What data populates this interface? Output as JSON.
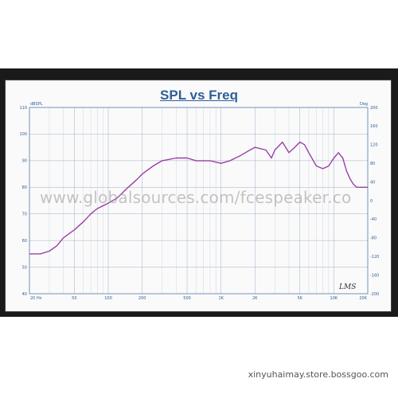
{
  "page": {
    "footer": "xinyuhaimay.store.bossgoo.com",
    "watermark": "www.globalsources.com/fcespeaker.co",
    "logo": "LMS"
  },
  "chart_data": {
    "type": "line",
    "title": "SPL vs Freq",
    "ylabel_left": "dBSPL",
    "ylabel_right": "Deg",
    "xscale": "log",
    "xlim": [
      20,
      20000
    ],
    "ylim": [
      40,
      110
    ],
    "y2lim": [
      -200,
      200
    ],
    "grid": true,
    "x_ticks": [
      "20 Hz",
      "50",
      "100",
      "200",
      "500",
      "1K",
      "2K",
      "5K",
      "10K",
      "20K"
    ],
    "y_ticks": [
      "110",
      "100",
      "90",
      "80",
      "70",
      "60",
      "50",
      "40"
    ],
    "y2_ticks": [
      "200",
      "160",
      "120",
      "80",
      "40",
      "0",
      "-40",
      "-80",
      "-120",
      "-160",
      "-200"
    ],
    "series": [
      {
        "color": "#9b3fa6",
        "x": [
          20,
          25,
          30,
          35,
          40,
          50,
          60,
          70,
          80,
          100,
          120,
          150,
          180,
          200,
          250,
          300,
          400,
          500,
          600,
          700,
          800,
          1000,
          1200,
          1500,
          1800,
          2000,
          2500,
          2800,
          3000,
          3500,
          4000,
          4500,
          5000,
          5500,
          6000,
          7000,
          8000,
          9000,
          10000,
          11000,
          12000,
          13000,
          14000,
          15000,
          16000,
          18000,
          20000
        ],
        "y": [
          55,
          55,
          56,
          58,
          61,
          64,
          67,
          70,
          72,
          74,
          76,
          80,
          83,
          85,
          88,
          90,
          91,
          91,
          90,
          90,
          90,
          89,
          90,
          92,
          94,
          95,
          94,
          91,
          94,
          97,
          93,
          95,
          97,
          96,
          93,
          88,
          87,
          88,
          91,
          93,
          91,
          86,
          83,
          81,
          80,
          80,
          80
        ]
      }
    ]
  }
}
